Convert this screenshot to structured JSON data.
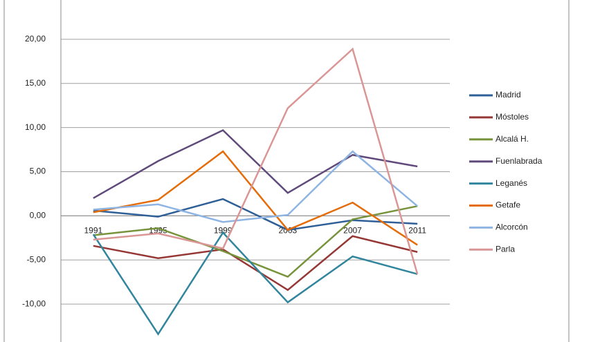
{
  "chart_data": {
    "type": "line",
    "categories": [
      "1991",
      "1995",
      "1999",
      "2003",
      "2007",
      "2011"
    ],
    "series": [
      {
        "name": "Madrid",
        "color": "#2e5f97",
        "values": [
          0.6,
          -0.1,
          1.9,
          -1.6,
          -0.5,
          -0.9
        ]
      },
      {
        "name": "Móstoles",
        "color": "#953735",
        "values": [
          -3.4,
          -4.8,
          -3.8,
          -8.4,
          -2.3,
          -4.1
        ]
      },
      {
        "name": "Alcalá H.",
        "color": "#77933c",
        "values": [
          -2.2,
          -1.4,
          -4.0,
          -6.9,
          -0.4,
          1.1
        ]
      },
      {
        "name": "Fuenlabrada",
        "color": "#604a7b",
        "values": [
          2.0,
          6.2,
          9.7,
          2.6,
          6.9,
          5.6
        ]
      },
      {
        "name": "Leganés",
        "color": "#31859c",
        "values": [
          -2.1,
          -13.4,
          -1.9,
          -9.8,
          -4.6,
          -6.6
        ]
      },
      {
        "name": "Getafe",
        "color": "#e46c0a",
        "values": [
          0.4,
          1.8,
          7.3,
          -1.6,
          1.5,
          -3.3
        ]
      },
      {
        "name": "Alcorcón",
        "color": "#8eb4e3",
        "values": [
          0.7,
          1.3,
          -0.7,
          0.1,
          7.3,
          1.1
        ]
      },
      {
        "name": "Parla",
        "color": "#d99694",
        "values": [
          -2.7,
          -2.0,
          -3.7,
          12.2,
          18.9,
          -6.6
        ]
      }
    ],
    "ylim": [
      -15,
      25
    ],
    "yticks": [
      {
        "value": -10,
        "label": "-10,00"
      },
      {
        "value": -5,
        "label": "-5,00"
      },
      {
        "value": 0,
        "label": "0,00"
      },
      {
        "value": 5,
        "label": "5,00"
      },
      {
        "value": 10,
        "label": "10,00"
      },
      {
        "value": 15,
        "label": "15,00"
      },
      {
        "value": 20,
        "label": "20,00"
      }
    ],
    "grid": true,
    "negative_label_color": "#c00000",
    "legend": "right"
  }
}
